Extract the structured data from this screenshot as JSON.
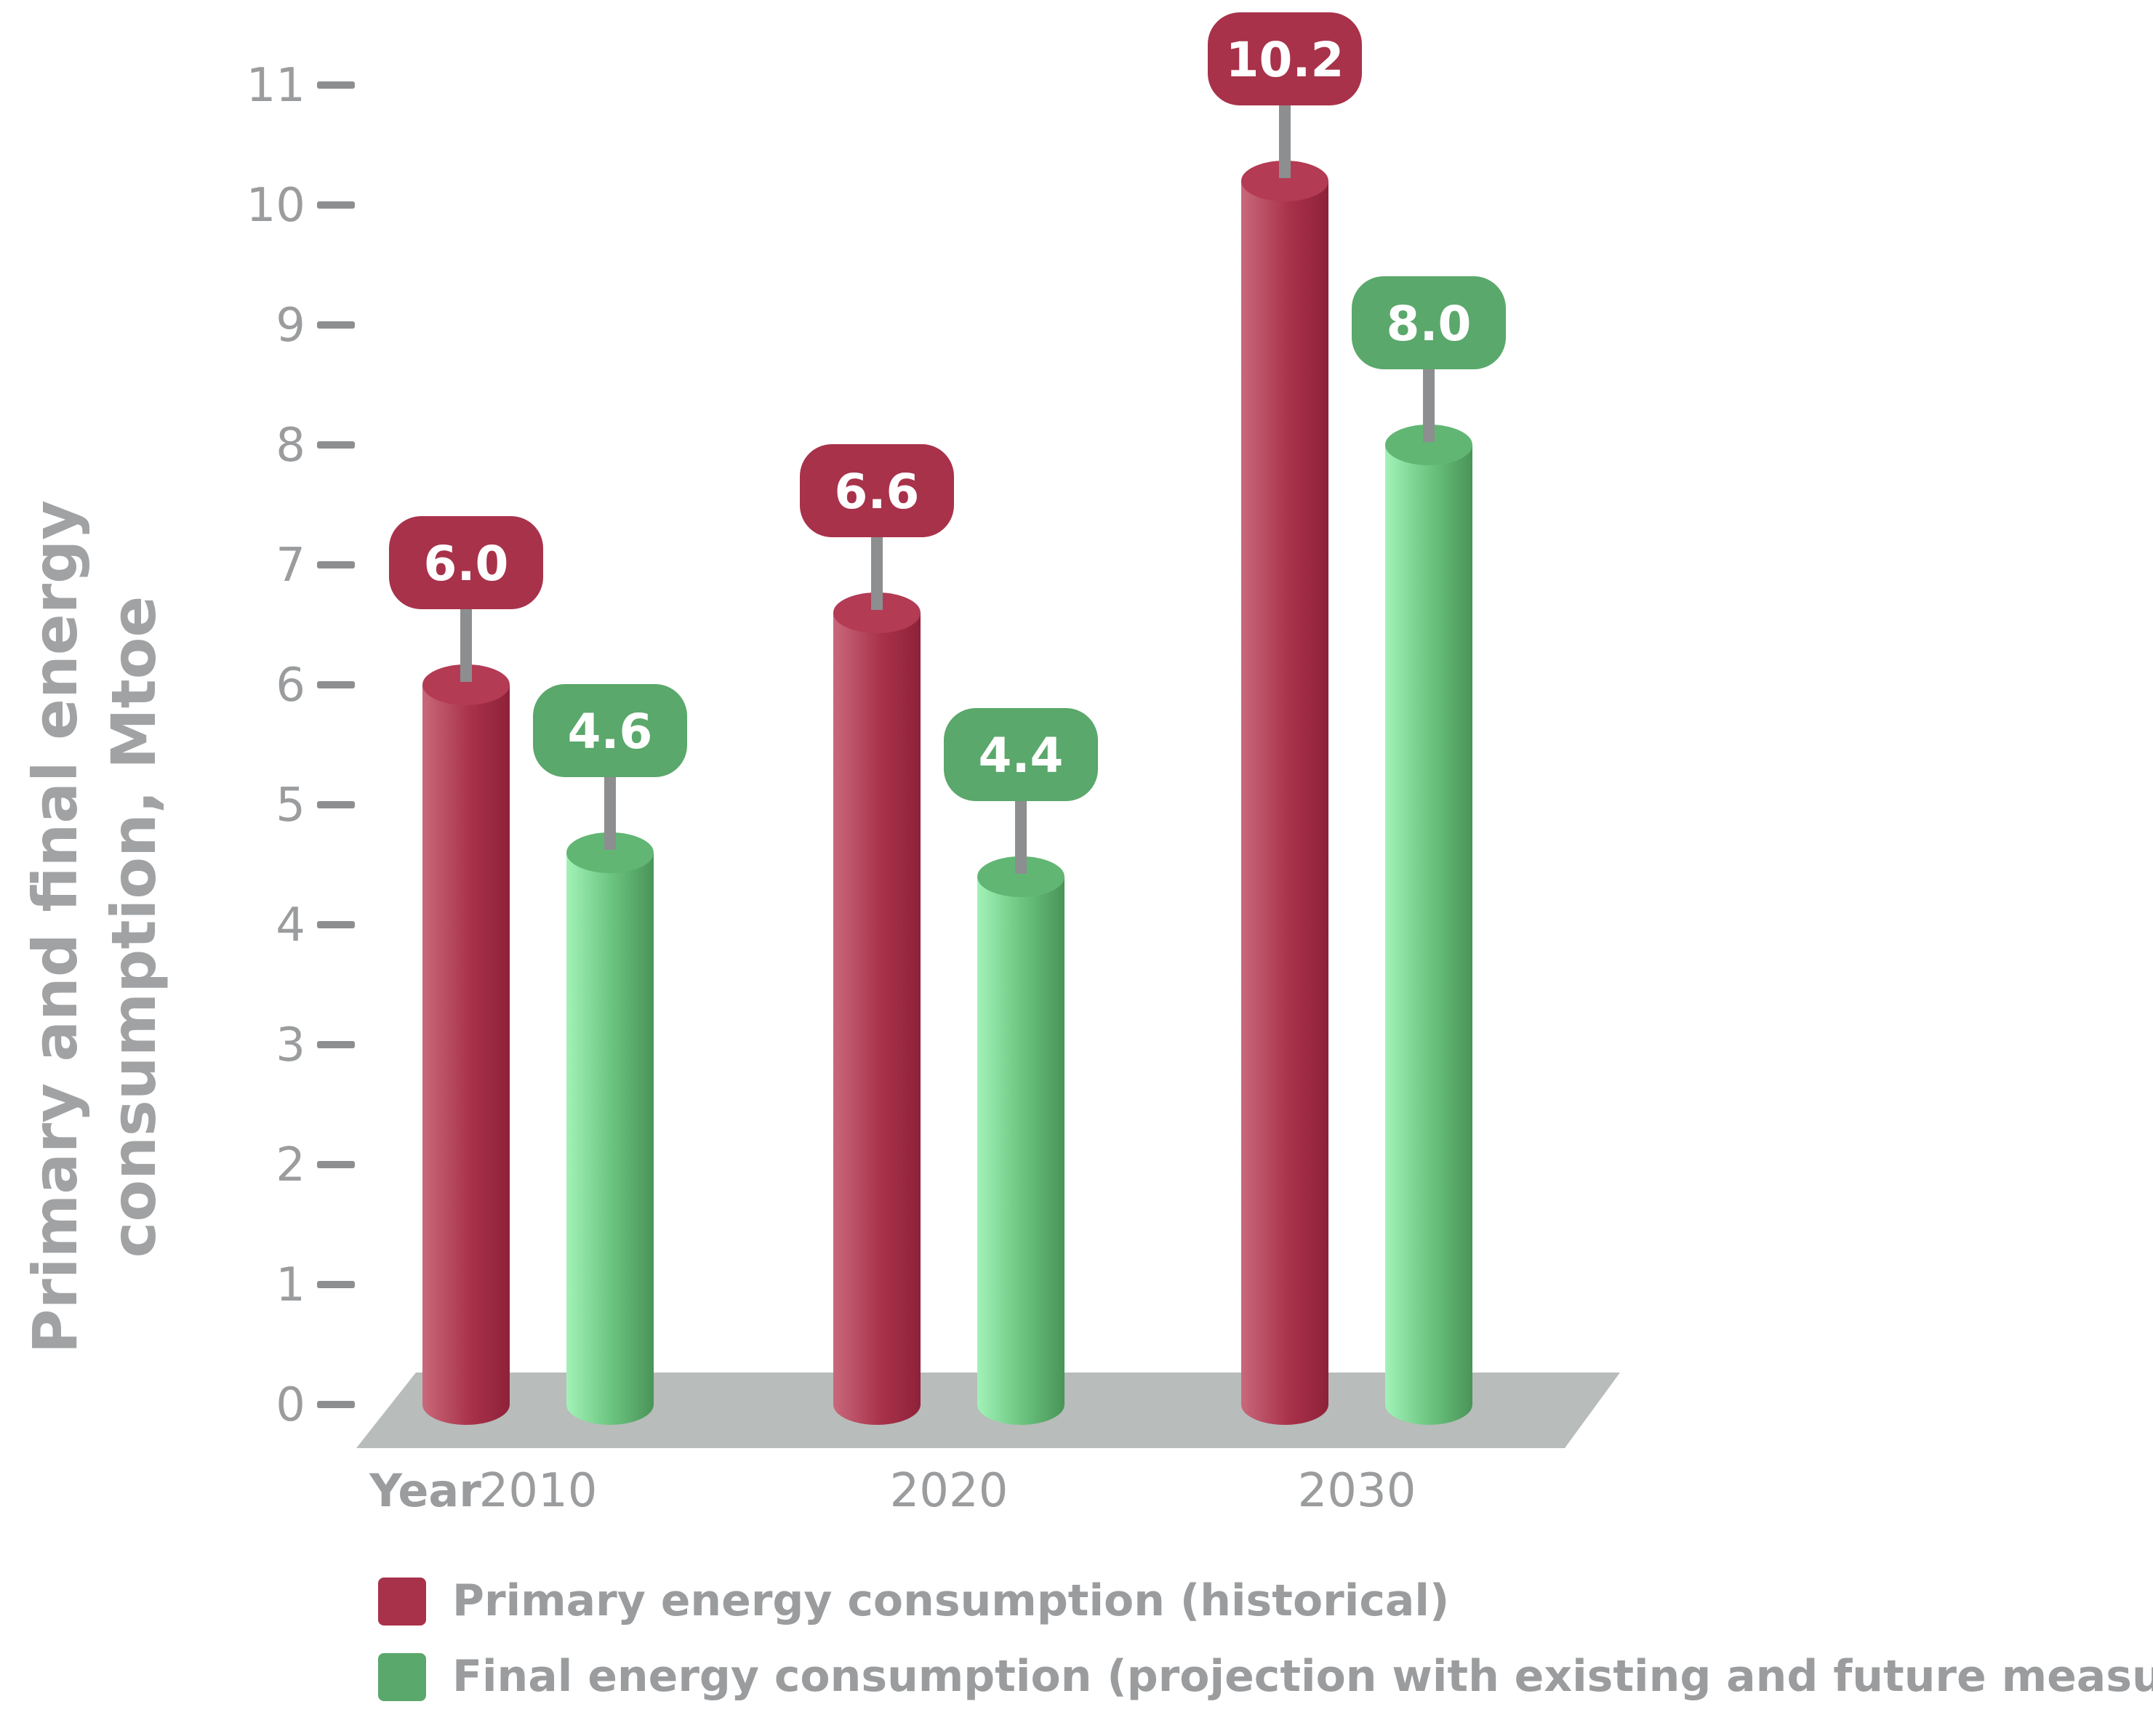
{
  "chart_data": {
    "type": "bar",
    "title": "",
    "xlabel": "Year",
    "ylabel_line1": "Primary and  final energy",
    "ylabel_line2": "consumption, Mtoe",
    "ylim": [
      0,
      11
    ],
    "yticks": [
      0,
      1,
      2,
      3,
      4,
      5,
      6,
      7,
      8,
      9,
      10,
      11
    ],
    "categories": [
      "2010",
      "2020",
      "2030"
    ],
    "series": [
      {
        "name": "Primary energy consumption (historical)",
        "color": "#a8324a",
        "labels": [
          "6.0",
          "6.6",
          "10.2"
        ],
        "values": [
          6.0,
          6.6,
          10.2
        ]
      },
      {
        "name": "Final energy consumption (projection with existing and future measures)",
        "color": "#5aa86b",
        "labels": [
          "4.6",
          "4.4",
          "8.0"
        ],
        "values": [
          4.6,
          4.4,
          8.0
        ]
      }
    ],
    "legend_position": "bottom-left",
    "colors": {
      "primary_dark": "#9c2741",
      "primary_light": "#c9687b",
      "final_dark": "#4e9a5e",
      "final_light": "#9ff0b4",
      "platform": "#b8bcba",
      "axis_text": "#9a9c9e",
      "stem": "#8c8e90"
    }
  }
}
